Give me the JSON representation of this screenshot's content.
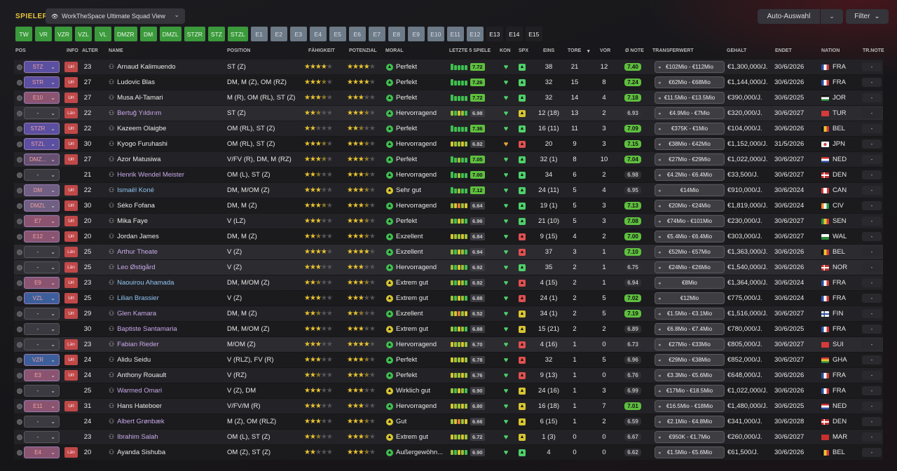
{
  "header": {
    "title": "SPIELER",
    "view": "WorkTheSpace Ultimate Squad View",
    "auto": "Auto-Auswahl",
    "filter": "Filter"
  },
  "chips": [
    {
      "l": "TW",
      "c": "green"
    },
    {
      "l": "VR",
      "c": "green"
    },
    {
      "l": "VZR",
      "c": "green"
    },
    {
      "l": "VZL",
      "c": "green"
    },
    {
      "l": "VL",
      "c": "green"
    },
    {
      "l": "DMZR",
      "c": "green"
    },
    {
      "l": "DM",
      "c": "green"
    },
    {
      "l": "DMZL",
      "c": "green"
    },
    {
      "l": "STZR",
      "c": "green"
    },
    {
      "l": "STZ",
      "c": "green"
    },
    {
      "l": "STZL",
      "c": "green"
    },
    {
      "l": "E1",
      "c": "grey"
    },
    {
      "l": "E2",
      "c": "grey"
    },
    {
      "l": "E3",
      "c": "grey"
    },
    {
      "l": "E4",
      "c": "grey"
    },
    {
      "l": "E5",
      "c": "grey"
    },
    {
      "l": "E6",
      "c": "grey"
    },
    {
      "l": "E7",
      "c": "grey"
    },
    {
      "l": "E8",
      "c": "grey"
    },
    {
      "l": "E9",
      "c": "grey"
    },
    {
      "l": "E10",
      "c": "grey"
    },
    {
      "l": "E11",
      "c": "grey"
    },
    {
      "l": "E12",
      "c": "grey"
    },
    {
      "l": "E13",
      "c": "dark"
    },
    {
      "l": "E14",
      "c": "dark"
    },
    {
      "l": "E15",
      "c": "dark"
    }
  ],
  "columns": {
    "pos": "POS",
    "info": "INFO",
    "age": "ALTER",
    "name": "NAME",
    "position": "POSITION",
    "ability": "FÄHIGKEIT",
    "potential": "POTENZIAL",
    "morale": "MORAL",
    "form": "LETZTE 5 SPIELE",
    "kon": "KON",
    "spx": "SPX",
    "apps": "EINS",
    "goals": "TORE",
    "assists": "VOR",
    "rating": "Ø NOTE",
    "value": "TRANSFERWERT",
    "wage": "GEHALT",
    "expires": "ENDET",
    "nation": "NATION",
    "trnote": "TR.NOTE"
  },
  "players": [
    {
      "pos": "STZ",
      "info": "Url",
      "age": "23",
      "name": "Arnaud Kalimuendo",
      "position": "ST (Z)",
      "ab": 4,
      "pt": 4,
      "morale": "Perfekt",
      "fb": "7.72",
      "apps": "38",
      "goals": "21",
      "assists": "12",
      "note": "7.40",
      "tw": "€102Mio - €112Mio",
      "wage": "€1,300,000/J.",
      "exp": "30/6/2026",
      "nat": "FRA",
      "tr": "-"
    },
    {
      "pos": "STR",
      "info": "Url",
      "age": "27",
      "name": "Ludovic Blas",
      "position": "DM, M (Z), OM (RZ)",
      "ab": 3.5,
      "pt": 4,
      "morale": "Perfekt",
      "fb": "7.26",
      "apps": "32",
      "goals": "15",
      "assists": "8",
      "note": "7.24",
      "tw": "€62Mio - €68Mio",
      "wage": "€1,144,000/J.",
      "exp": "30/6/2026",
      "nat": "FRA",
      "tr": "-"
    },
    {
      "pos": "E10",
      "info": "Url",
      "age": "27",
      "name": "Musa Al-Tamari",
      "position": "M (R), OM (RL), ST (Z)",
      "ab": 3.5,
      "pt": 3,
      "morale": "Perfekt",
      "fb": "7.72",
      "apps": "32",
      "goals": "14",
      "assists": "4",
      "note": "7.18",
      "tw": "€11.5Mio - €13.5Mio",
      "wage": "€390,000/J.",
      "exp": "30/6/2025",
      "nat": "JOR",
      "tr": "-"
    },
    {
      "pos": "-",
      "info": "Län",
      "age": "22",
      "name": "Bertuğ Yıldırım",
      "position": "ST (Z)",
      "ab": 2.5,
      "pt": 3.5,
      "morale": "Hervorragend",
      "fb": "6.98",
      "apps": "12 (18)",
      "goals": "13",
      "assists": "2",
      "note": "6.93",
      "tw": "€4.9Mio - €7Mio",
      "wage": "€320,000/J.",
      "exp": "30/6/2027",
      "nat": "TUR",
      "tr": "-"
    },
    {
      "pos": "STZR",
      "info": "Url",
      "age": "22",
      "name": "Kazeem Olaigbe",
      "position": "OM (RL), ST (Z)",
      "ab": 2,
      "pt": 2.5,
      "morale": "Perfekt",
      "fb": "7.36",
      "apps": "16 (11)",
      "goals": "11",
      "assists": "3",
      "note": "7.09",
      "tw": "€375K - €1Mio",
      "wage": "€104,000/J.",
      "exp": "30/6/2026",
      "nat": "BEL",
      "tr": "-"
    },
    {
      "pos": "STZL",
      "info": "Url",
      "age": "30",
      "name": "Kyogo Furuhashi",
      "position": "OM (RL), ST (Z)",
      "ab": 3.5,
      "pt": 3.5,
      "morale": "Hervorragend",
      "fb": "6.82",
      "apps": "20",
      "goals": "9",
      "assists": "3",
      "note": "7.15",
      "tw": "€38Mio - €42Mio",
      "wage": "€1,152,000/J.",
      "exp": "31/5/2026",
      "nat": "JPN",
      "tr": "-"
    },
    {
      "pos": "DMZ...",
      "info": "Url",
      "age": "27",
      "name": "Azor Matusiwa",
      "position": "V/FV (R), DM, M (RZ)",
      "ab": 3.5,
      "pt": 3.5,
      "morale": "Perfekt",
      "fb": "7.05",
      "apps": "32 (1)",
      "goals": "8",
      "assists": "10",
      "note": "7.04",
      "tw": "€27Mio - €29Mio",
      "wage": "€1,022,000/J.",
      "exp": "30/6/2027",
      "nat": "NED",
      "tr": "-"
    },
    {
      "pos": "-",
      "info": "",
      "age": "21",
      "name": "Henrik Wendel Meister",
      "position": "OM (L), ST (Z)",
      "ab": 2.5,
      "pt": 3.5,
      "morale": "Hervorragend",
      "fb": "7.00",
      "apps": "34",
      "goals": "6",
      "assists": "2",
      "note": "6.98",
      "tw": "€4.2Mio - €6.4Mio",
      "wage": "€33,500/J.",
      "exp": "30/6/2027",
      "nat": "DEN",
      "tr": "-"
    },
    {
      "pos": "DM",
      "info": "Url",
      "age": "22",
      "name": "Ismaël Koné",
      "position": "DM, M/OM (Z)",
      "ab": 3,
      "pt": 3.5,
      "morale": "Sehr gut",
      "fb": "7.12",
      "apps": "24 (11)",
      "goals": "5",
      "assists": "4",
      "note": "6.95",
      "tw": "€14Mio",
      "wage": "€910,000/J.",
      "exp": "30/6/2024",
      "nat": "CAN",
      "tr": "-"
    },
    {
      "pos": "DMZL",
      "info": "Url",
      "age": "30",
      "name": "Séko Fofana",
      "position": "DM, M (Z)",
      "ab": 3.5,
      "pt": 3.5,
      "morale": "Hervorragend",
      "fb": "6.64",
      "apps": "19 (1)",
      "goals": "5",
      "assists": "3",
      "note": "7.13",
      "tw": "€20Mio - €24Mio",
      "wage": "€1,819,000/J.",
      "exp": "30/6/2024",
      "nat": "CIV",
      "tr": "-"
    },
    {
      "pos": "E7",
      "info": "Url",
      "age": "20",
      "name": "Mika Faye",
      "position": "V (LZ)",
      "ab": 3,
      "pt": 3.5,
      "morale": "Perfekt",
      "fb": "6.96",
      "apps": "21 (10)",
      "goals": "5",
      "assists": "3",
      "note": "7.08",
      "tw": "€74Mio - €101Mio",
      "wage": "€230,000/J.",
      "exp": "30/6/2027",
      "nat": "SEN",
      "tr": "-"
    },
    {
      "pos": "E12",
      "info": "Url",
      "age": "20",
      "name": "Jordan James",
      "position": "DM, M (Z)",
      "ab": 2.5,
      "pt": 3.5,
      "morale": "Exzellent",
      "fb": "6.84",
      "apps": "9 (15)",
      "goals": "4",
      "assists": "2",
      "note": "7.00",
      "tw": "€5.4Mio - €6.4Mio",
      "wage": "€303,000/J.",
      "exp": "30/6/2027",
      "nat": "WAL",
      "tr": "-"
    },
    {
      "pos": "-",
      "info": "Län",
      "age": "25",
      "name": "Arthur Theate",
      "position": "V (Z)",
      "ab": 4,
      "pt": 4,
      "morale": "Exzellent",
      "fb": "6.94",
      "apps": "37",
      "goals": "3",
      "assists": "1",
      "note": "7.10",
      "tw": "€52Mio - €57Mio",
      "wage": "€1,363,000/J.",
      "exp": "30/6/2026",
      "nat": "BEL",
      "tr": "-"
    },
    {
      "pos": "-",
      "info": "Län",
      "age": "25",
      "name": "Leo Østigård",
      "position": "V (Z)",
      "ab": 3,
      "pt": 3,
      "morale": "Hervorragend",
      "fb": "6.92",
      "apps": "35",
      "goals": "2",
      "assists": "1",
      "note": "6.75",
      "tw": "€24Mio - €26Mio",
      "wage": "€1,540,000/J.",
      "exp": "30/6/2026",
      "nat": "NOR",
      "tr": "-"
    },
    {
      "pos": "E9",
      "info": "Url",
      "age": "23",
      "name": "Naouirou Ahamada",
      "position": "DM, M/OM (Z)",
      "ab": 2.5,
      "pt": 3.5,
      "morale": "Extrem gut",
      "fb": "6.92",
      "apps": "4 (15)",
      "goals": "2",
      "assists": "1",
      "note": "6.94",
      "tw": "€8Mio",
      "wage": "€1,364,000/J.",
      "exp": "30/6/2024",
      "nat": "FRA",
      "tr": "-"
    },
    {
      "pos": "VZL",
      "info": "Url",
      "age": "25",
      "name": "Lilian Brassier",
      "position": "V (Z)",
      "ab": 3,
      "pt": 3,
      "morale": "Extrem gut",
      "fb": "6.88",
      "apps": "24 (1)",
      "goals": "2",
      "assists": "5",
      "note": "7.02",
      "tw": "€12Mio",
      "wage": "€775,000/J.",
      "exp": "30/6/2024",
      "nat": "FRA",
      "tr": "-"
    },
    {
      "pos": "-",
      "info": "Url",
      "age": "29",
      "name": "Glen Kamara",
      "position": "DM, M (Z)",
      "ab": 2.5,
      "pt": 2.5,
      "morale": "Exzellent",
      "fb": "6.52",
      "apps": "34 (1)",
      "goals": "2",
      "assists": "5",
      "note": "7.19",
      "tw": "€1.5Mio - €3.1Mio",
      "wage": "€1,516,000/J.",
      "exp": "30/6/2027",
      "nat": "FIN",
      "tr": "-"
    },
    {
      "pos": "-",
      "info": "",
      "age": "30",
      "name": "Baptiste Santamaria",
      "position": "DM, M/OM (Z)",
      "ab": 3,
      "pt": 3,
      "morale": "Extrem gut",
      "fb": "6.88",
      "apps": "15 (21)",
      "goals": "2",
      "assists": "2",
      "note": "6.89",
      "tw": "€6.8Mio - €7.4Mio",
      "wage": "€780,000/J.",
      "exp": "30/6/2025",
      "nat": "FRA",
      "tr": "-"
    },
    {
      "pos": "-",
      "info": "Län",
      "age": "23",
      "name": "Fabian Rieder",
      "position": "M/OM (Z)",
      "ab": 3,
      "pt": 4,
      "morale": "Hervorragend",
      "fb": "6.70",
      "apps": "4 (16)",
      "goals": "1",
      "assists": "0",
      "note": "6.73",
      "tw": "€27Mio - €33Mio",
      "wage": "€805,000/J.",
      "exp": "30/6/2027",
      "nat": "SUI",
      "tr": "-"
    },
    {
      "pos": "VZR",
      "info": "Url",
      "age": "24",
      "name": "Alidu Seidu",
      "position": "V (RLZ), FV (R)",
      "ab": 3,
      "pt": 3.5,
      "morale": "Perfekt",
      "fb": "6.78",
      "apps": "32",
      "goals": "1",
      "assists": "5",
      "note": "6.96",
      "tw": "€29Mio - €38Mio",
      "wage": "€852,000/J.",
      "exp": "30/6/2027",
      "nat": "GHA",
      "tr": "-"
    },
    {
      "pos": "E3",
      "info": "Url",
      "age": "24",
      "name": "Anthony Rouault",
      "position": "V (RZ)",
      "ab": 2.5,
      "pt": 3.5,
      "morale": "Perfekt",
      "fb": "6.76",
      "apps": "9 (13)",
      "goals": "1",
      "assists": "0",
      "note": "6.76",
      "tw": "€3.3Mio - €5.6Mio",
      "wage": "€648,000/J.",
      "exp": "30/6/2026",
      "nat": "FRA",
      "tr": "-"
    },
    {
      "pos": "-",
      "info": "",
      "age": "25",
      "name": "Warmed Omari",
      "position": "V (Z), DM",
      "ab": 3,
      "pt": 3,
      "morale": "Wirklich gut",
      "fb": "6.90",
      "apps": "24 (16)",
      "goals": "1",
      "assists": "3",
      "note": "6.99",
      "tw": "€17Mio - €18.5Mio",
      "wage": "€1,022,000/J.",
      "exp": "30/6/2026",
      "nat": "FRA",
      "tr": "-"
    },
    {
      "pos": "E11",
      "info": "Url",
      "age": "31",
      "name": "Hans Hateboer",
      "position": "V/FV/M (R)",
      "ab": 3,
      "pt": 3,
      "morale": "Hervorragend",
      "fb": "6.80",
      "apps": "16 (18)",
      "goals": "1",
      "assists": "7",
      "note": "7.01",
      "tw": "€16.5Mio - €18Mio",
      "wage": "€1,480,000/J.",
      "exp": "30/6/2025",
      "nat": "NED",
      "tr": "-"
    },
    {
      "pos": "-",
      "info": "",
      "age": "24",
      "name": "Albert Grønbæk",
      "position": "M (Z), OM (RLZ)",
      "ab": 3,
      "pt": 3.5,
      "morale": "Gut",
      "fb": "6.66",
      "apps": "6 (15)",
      "goals": "1",
      "assists": "2",
      "note": "6.59",
      "tw": "€2.1Mio - €4.8Mio",
      "wage": "€341,000/J.",
      "exp": "30/6/2028",
      "nat": "DEN",
      "tr": "-"
    },
    {
      "pos": "-",
      "info": "",
      "age": "23",
      "name": "Ibrahim Salah",
      "position": "OM (L), ST (Z)",
      "ab": 2.5,
      "pt": 3.5,
      "morale": "Extrem gut",
      "fb": "6.72",
      "apps": "1 (3)",
      "goals": "0",
      "assists": "0",
      "note": "6.67",
      "tw": "€950K - €1.7Mio",
      "wage": "€260,000/J.",
      "exp": "30/6/2027",
      "nat": "MAR",
      "tr": "-"
    },
    {
      "pos": "E4",
      "info": "Län",
      "age": "20",
      "name": "Ayanda Sishuba",
      "position": "OM (Z), ST (Z)",
      "ab": 2,
      "pt": 3.5,
      "morale": "Außergewöhn...",
      "fb": "6.90",
      "apps": "4",
      "goals": "0",
      "assists": "0",
      "note": "6.62",
      "tw": "€1.5Mio - €5.6Mio",
      "wage": "€61,500/J.",
      "exp": "30/6/2026",
      "nat": "BEL",
      "tr": "-"
    }
  ]
}
